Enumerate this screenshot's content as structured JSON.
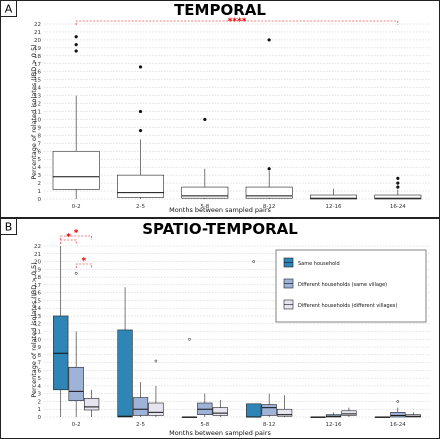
{
  "chart_data": [
    {
      "type": "box",
      "panel": "A",
      "title": "TEMPORAL",
      "xlabel": "Months between sampled pairs",
      "ylabel": "Percentage of related isolates (IBD > 0.5)",
      "ylim": [
        0,
        22
      ],
      "yticks": [
        0,
        1,
        2,
        3,
        4,
        5,
        6,
        7,
        8,
        9,
        10,
        11,
        12,
        13,
        14,
        15,
        16,
        17,
        18,
        19,
        20,
        21,
        22
      ],
      "categories": [
        "0-2",
        "2-5",
        "5-8",
        "8-12",
        "12-16",
        "16-24"
      ],
      "boxes": [
        {
          "q1": 1.2,
          "median": 2.8,
          "q3": 6.0,
          "whisker_low": 0,
          "whisker_high": 13.0,
          "outliers": [
            18.6,
            19.4,
            20.4
          ]
        },
        {
          "q1": 0.2,
          "median": 0.8,
          "q3": 3.0,
          "whisker_low": 0,
          "whisker_high": 7.5,
          "outliers": [
            8.6,
            11.0,
            16.6
          ]
        },
        {
          "q1": 0.1,
          "median": 0.4,
          "q3": 1.5,
          "whisker_low": 0,
          "whisker_high": 3.8,
          "outliers": [
            10.0
          ]
        },
        {
          "q1": 0.1,
          "median": 0.4,
          "q3": 1.5,
          "whisker_low": 0,
          "whisker_high": 3.5,
          "outliers": [
            3.8,
            20.0
          ]
        },
        {
          "q1": 0.0,
          "median": 0.1,
          "q3": 0.5,
          "whisker_low": 0,
          "whisker_high": 1.3,
          "outliers": []
        },
        {
          "q1": 0.0,
          "median": 0.1,
          "q3": 0.5,
          "whisker_low": 0,
          "whisker_high": 1.2,
          "outliers": [
            1.5,
            2.0,
            2.6
          ]
        }
      ],
      "annotations": [
        {
          "text": "****",
          "from": "0-2",
          "to": "16-24"
        }
      ]
    },
    {
      "type": "box",
      "panel": "B",
      "title": "SPATIO-TEMPORAL",
      "xlabel": "Months between sampled pairs",
      "ylabel": "Percentage of related isolates (IBD > 0.5)",
      "ylim": [
        0,
        22
      ],
      "yticks": [
        0,
        1,
        2,
        3,
        4,
        5,
        6,
        7,
        8,
        9,
        10,
        11,
        12,
        13,
        14,
        15,
        16,
        17,
        18,
        19,
        20,
        21,
        22
      ],
      "categories": [
        "0-2",
        "2-5",
        "5-8",
        "8-12",
        "12-16",
        "16-24"
      ],
      "series": [
        {
          "name": "Same household",
          "color": "#2f86b6",
          "boxes": [
            {
              "q1": 3.5,
              "median": 8.2,
              "q3": 13.0,
              "whisker_low": 0,
              "whisker_high": 22.0,
              "outliers": []
            },
            {
              "q1": 0.0,
              "median": 0.1,
              "q3": 11.2,
              "whisker_low": 0,
              "whisker_high": 16.7,
              "outliers": []
            },
            {
              "q1": 0.0,
              "median": 0.0,
              "q3": 0.0,
              "whisker_low": 0,
              "whisker_high": 0.0,
              "outliers": [
                10.0
              ]
            },
            {
              "q1": 0.0,
              "median": 0.0,
              "q3": 1.7,
              "whisker_low": 0,
              "whisker_high": 1.7,
              "outliers": [
                20.0
              ]
            },
            {
              "q1": 0.0,
              "median": 0.0,
              "q3": 0.0,
              "whisker_low": 0,
              "whisker_high": 0.0,
              "outliers": []
            },
            {
              "q1": 0.0,
              "median": 0.0,
              "q3": 0.0,
              "whisker_low": 0,
              "whisker_high": 0.0,
              "outliers": []
            }
          ]
        },
        {
          "name": "Different households (same village)",
          "color": "#9fb3d9",
          "boxes": [
            {
              "q1": 2.1,
              "median": 3.3,
              "q3": 6.4,
              "whisker_low": 0,
              "whisker_high": 11.0,
              "outliers": [
                18.5
              ]
            },
            {
              "q1": 0.2,
              "median": 1.0,
              "q3": 2.5,
              "whisker_low": 0,
              "whisker_high": 4.5,
              "outliers": []
            },
            {
              "q1": 0.3,
              "median": 1.0,
              "q3": 1.8,
              "whisker_low": 0,
              "whisker_high": 3.0,
              "outliers": []
            },
            {
              "q1": 0.2,
              "median": 1.2,
              "q3": 1.6,
              "whisker_low": 0,
              "whisker_high": 3.0,
              "outliers": []
            },
            {
              "q1": 0.0,
              "median": 0.1,
              "q3": 0.3,
              "whisker_low": 0,
              "whisker_high": 0.6,
              "outliers": []
            },
            {
              "q1": 0.0,
              "median": 0.2,
              "q3": 0.6,
              "whisker_low": 0,
              "whisker_high": 1.2,
              "outliers": [
                2.0
              ]
            }
          ]
        },
        {
          "name": "Different households (different villages)",
          "color": "#e6e4ee",
          "boxes": [
            {
              "q1": 0.9,
              "median": 1.3,
              "q3": 2.4,
              "whisker_low": 0,
              "whisker_high": 3.5,
              "outliers": []
            },
            {
              "q1": 0.2,
              "median": 0.6,
              "q3": 1.8,
              "whisker_low": 0,
              "whisker_high": 4.0,
              "outliers": [
                7.2
              ]
            },
            {
              "q1": 0.2,
              "median": 0.5,
              "q3": 1.2,
              "whisker_low": 0,
              "whisker_high": 2.2,
              "outliers": []
            },
            {
              "q1": 0.1,
              "median": 0.3,
              "q3": 1.0,
              "whisker_low": 0,
              "whisker_high": 2.8,
              "outliers": []
            },
            {
              "q1": 0.2,
              "median": 0.4,
              "q3": 0.8,
              "whisker_low": 0,
              "whisker_high": 1.2,
              "outliers": []
            },
            {
              "q1": 0.0,
              "median": 0.1,
              "q3": 0.3,
              "whisker_low": 0,
              "whisker_high": 0.6,
              "outliers": []
            }
          ]
        }
      ],
      "annotations": [
        {
          "text": "*",
          "from": "Same household",
          "to": "Different households (same village)",
          "category": "0-2"
        },
        {
          "text": "*",
          "from": "Same household",
          "to": "Different households (different villages)",
          "category": "0-2"
        },
        {
          "text": "*",
          "from": "Different households (same village)",
          "to": "Different households (different villages)",
          "category": "0-2"
        }
      ],
      "legend": {
        "position": "top-right"
      }
    }
  ]
}
